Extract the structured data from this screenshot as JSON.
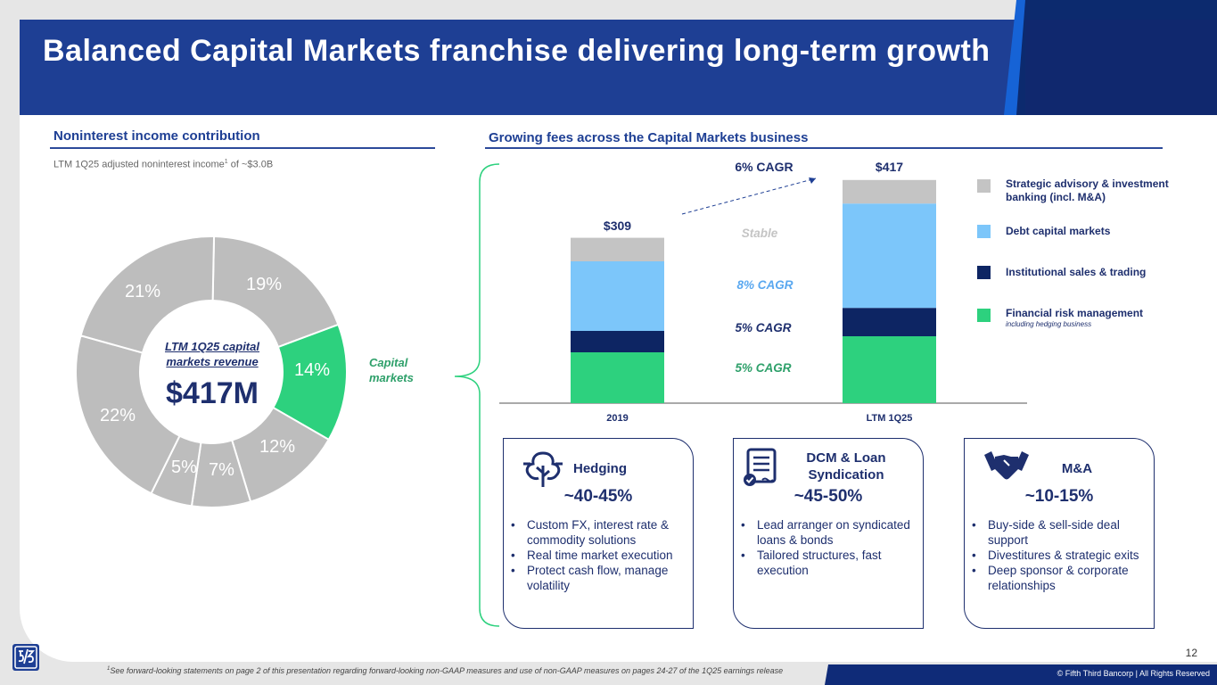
{
  "title": "Balanced Capital Markets franchise delivering long-term growth",
  "left": {
    "heading": "Noninterest income contribution",
    "subnote_prefix": "LTM 1Q25 adjusted noninterest income",
    "subnote_sup": "1",
    "subnote_suffix": " of ~$3.0B",
    "center_label": "LTM 1Q25 capital markets revenue",
    "center_value": "$417M",
    "capital_markets_label": "Capital markets",
    "segments": [
      {
        "label": "19%",
        "value": 19,
        "color": "#bdbdbd"
      },
      {
        "label": "14%",
        "value": 14,
        "color": "#2dd17e"
      },
      {
        "label": "12%",
        "value": 12,
        "color": "#bdbdbd"
      },
      {
        "label": "7%",
        "value": 7,
        "color": "#bdbdbd"
      },
      {
        "label": "5%",
        "value": 5,
        "color": "#bdbdbd"
      },
      {
        "label": "22%",
        "value": 22,
        "color": "#bdbdbd"
      },
      {
        "label": "21%",
        "value": 21,
        "color": "#bdbdbd"
      }
    ]
  },
  "right": {
    "heading": "Growing fees across the Capital Markets business"
  },
  "chart_data": {
    "type": "bar",
    "stacked": true,
    "categories": [
      "2019",
      "LTM 1Q25"
    ],
    "totals_labels": [
      "$309",
      "$417"
    ],
    "series": [
      {
        "name": "Financial risk management",
        "sub": "including hedging business",
        "color": "#2dd17e",
        "values": [
          95,
          125
        ]
      },
      {
        "name": "Institutional sales & trading",
        "color": "#0d2563",
        "values": [
          40,
          53
        ]
      },
      {
        "name": "Debt capital markets",
        "color": "#7cc6fa",
        "values": [
          130,
          195
        ]
      },
      {
        "name": "Strategic advisory & investment banking (incl. M&A)",
        "color": "#c4c4c4",
        "values": [
          44,
          44
        ]
      }
    ],
    "annotations": {
      "overall": "6% CAGR",
      "advisory": "Stable",
      "dcm": "8% CAGR",
      "trading": "5% CAGR",
      "risk": "5% CAGR"
    },
    "ylim": [
      0,
      450
    ]
  },
  "boxes": [
    {
      "title": "Hedging",
      "range": "~40-45%",
      "icon": "tree-icon",
      "bullets": [
        "Custom FX, interest rate & commodity solutions",
        "Real time market execution",
        "Protect cash flow, manage volatility"
      ]
    },
    {
      "title": "DCM & Loan Syndication",
      "range": "~45-50%",
      "icon": "document-check-icon",
      "bullets": [
        "Lead arranger on syndicated loans & bonds",
        "Tailored structures, fast execution"
      ]
    },
    {
      "title": "M&A",
      "range": "~10-15%",
      "icon": "handshake-icon",
      "bullets": [
        "Buy-side & sell-side deal support",
        "Divestitures & strategic exits",
        "Deep sponsor & corporate relationships"
      ]
    }
  ],
  "footer": {
    "footnote_sup": "1",
    "footnote": "See forward-looking statements on page 2 of this presentation regarding forward-looking non-GAAP measures and use of non-GAAP measures on pages 24-27 of the 1Q25 earnings release",
    "page_number": "12",
    "copyright": "© Fifth Third Bancorp | All Rights Reserved"
  }
}
